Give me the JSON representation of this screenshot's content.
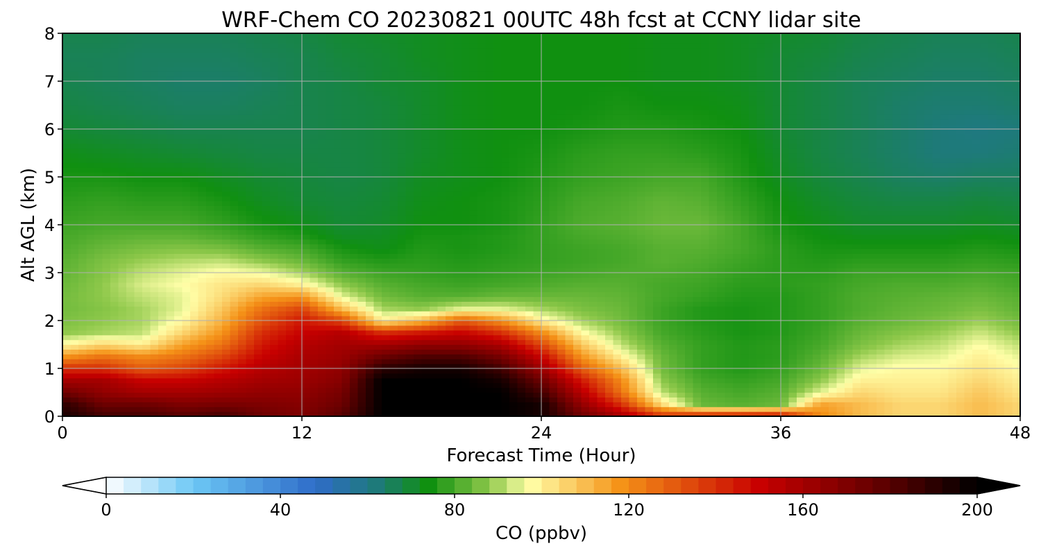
{
  "chart_data": {
    "type": "heatmap",
    "title": "WRF-Chem CO  20230821 00UTC 48h fcst at CCNY lidar site",
    "xlabel": "Forecast Time (Hour)",
    "ylabel": "Alt AGL (km)",
    "xlim": [
      0,
      48
    ],
    "ylim": [
      0,
      8
    ],
    "xticks": [
      0,
      12,
      24,
      36,
      48
    ],
    "yticks": [
      0,
      1,
      2,
      3,
      4,
      5,
      6,
      7,
      8
    ],
    "grid": true,
    "x": [
      0,
      2,
      4,
      6,
      8,
      10,
      12,
      14,
      16,
      18,
      20,
      22,
      24,
      26,
      28,
      30,
      32,
      34,
      36,
      38,
      40,
      42,
      44,
      46,
      48
    ],
    "y": [
      0,
      0.25,
      0.5,
      0.75,
      1,
      1.25,
      1.5,
      1.75,
      2,
      2.25,
      2.5,
      2.75,
      3,
      3.25,
      3.5,
      3.75,
      4,
      4.5,
      5,
      5.5,
      6,
      6.5,
      7,
      7.5,
      8
    ],
    "z_unit": "CO  (ppbv)",
    "z": [
      [
        195,
        185,
        185,
        180,
        185,
        175,
        170,
        180,
        200,
        200,
        200,
        200,
        195,
        175,
        160,
        140,
        145,
        148,
        150,
        120,
        110,
        105,
        105,
        110,
        105
      ],
      [
        190,
        175,
        175,
        170,
        172,
        170,
        168,
        175,
        200,
        200,
        200,
        200,
        195,
        165,
        140,
        105,
        84,
        82,
        84,
        115,
        110,
        105,
        105,
        110,
        105
      ],
      [
        175,
        165,
        160,
        160,
        162,
        165,
        165,
        172,
        200,
        200,
        200,
        200,
        185,
        155,
        125,
        92,
        82,
        80,
        82,
        95,
        105,
        102,
        102,
        108,
        102
      ],
      [
        160,
        160,
        150,
        150,
        155,
        160,
        162,
        168,
        200,
        200,
        200,
        195,
        175,
        145,
        120,
        88,
        80,
        78,
        80,
        88,
        100,
        100,
        100,
        105,
        100
      ],
      [
        140,
        140,
        130,
        135,
        145,
        155,
        160,
        165,
        190,
        195,
        195,
        185,
        162,
        130,
        110,
        85,
        78,
        76,
        78,
        84,
        95,
        98,
        98,
        102,
        98
      ],
      [
        118,
        125,
        120,
        125,
        135,
        150,
        158,
        162,
        175,
        182,
        182,
        172,
        150,
        118,
        100,
        84,
        78,
        76,
        77,
        82,
        90,
        94,
        95,
        100,
        95
      ],
      [
        98,
        105,
        100,
        115,
        125,
        145,
        155,
        160,
        160,
        165,
        165,
        158,
        135,
        108,
        92,
        82,
        78,
        76,
        77,
        80,
        86,
        90,
        92,
        97,
        92
      ],
      [
        88,
        90,
        92,
        105,
        118,
        140,
        150,
        155,
        140,
        145,
        150,
        140,
        120,
        98,
        88,
        80,
        77,
        75,
        76,
        79,
        84,
        87,
        89,
        93,
        88
      ],
      [
        86,
        88,
        90,
        98,
        112,
        132,
        145,
        135,
        100,
        110,
        130,
        118,
        100,
        90,
        85,
        79,
        76,
        75,
        76,
        78,
        82,
        84,
        86,
        89,
        85
      ],
      [
        85,
        87,
        90,
        95,
        108,
        125,
        135,
        110,
        90,
        88,
        95,
        95,
        90,
        86,
        84,
        79,
        76,
        75,
        76,
        78,
        81,
        83,
        84,
        86,
        83
      ],
      [
        85,
        88,
        92,
        95,
        104,
        115,
        118,
        95,
        85,
        82,
        82,
        84,
        84,
        84,
        83,
        80,
        78,
        76,
        76,
        78,
        81,
        82,
        83,
        84,
        82
      ],
      [
        84,
        88,
        94,
        97,
        102,
        105,
        100,
        88,
        82,
        80,
        79,
        80,
        81,
        82,
        82,
        80,
        79,
        77,
        77,
        78,
        80,
        81,
        81,
        82,
        80
      ],
      [
        83,
        87,
        92,
        95,
        98,
        96,
        90,
        82,
        79,
        78,
        77,
        78,
        79,
        80,
        81,
        81,
        80,
        78,
        77,
        77,
        79,
        79,
        79,
        80,
        79
      ],
      [
        82,
        86,
        89,
        91,
        92,
        88,
        84,
        78,
        76,
        77,
        76,
        77,
        78,
        79,
        80,
        82,
        81,
        79,
        77,
        76,
        77,
        77,
        77,
        78,
        77
      ],
      [
        81,
        84,
        86,
        87,
        86,
        82,
        80,
        75,
        73,
        76,
        75,
        76,
        78,
        79,
        80,
        82,
        82,
        80,
        77,
        75,
        75,
        75,
        75,
        76,
        75
      ],
      [
        80,
        82,
        83,
        83,
        81,
        78,
        76,
        72,
        72,
        75,
        75,
        76,
        78,
        80,
        81,
        83,
        83,
        80,
        76,
        74,
        73,
        73,
        73,
        74,
        73
      ],
      [
        79,
        80,
        80,
        80,
        78,
        75,
        73,
        70,
        71,
        74,
        74,
        75,
        78,
        81,
        82,
        84,
        84,
        80,
        75,
        73,
        71,
        71,
        71,
        72,
        71
      ],
      [
        77,
        78,
        77,
        77,
        75,
        72,
        70,
        69,
        70,
        73,
        74,
        75,
        77,
        80,
        81,
        83,
        82,
        78,
        74,
        71,
        69,
        68,
        68,
        69,
        68
      ],
      [
        75,
        75,
        74,
        74,
        72,
        70,
        69,
        68,
        69,
        72,
        73,
        74,
        76,
        78,
        79,
        80,
        80,
        76,
        72,
        69,
        67,
        65,
        64,
        65,
        65
      ],
      [
        73,
        72,
        71,
        70,
        69,
        68,
        68,
        68,
        69,
        71,
        73,
        74,
        75,
        77,
        78,
        78,
        77,
        75,
        71,
        68,
        66,
        64,
        62,
        62,
        63
      ],
      [
        70,
        69,
        68,
        67,
        67,
        67,
        67,
        68,
        69,
        71,
        73,
        74,
        74,
        75,
        76,
        76,
        75,
        74,
        70,
        68,
        66,
        64,
        62,
        61,
        62
      ],
      [
        68,
        67,
        66,
        65,
        65,
        66,
        67,
        68,
        69,
        71,
        73,
        74,
        74,
        74,
        75,
        74,
        74,
        73,
        70,
        68,
        66,
        64,
        63,
        63,
        64
      ],
      [
        67,
        66,
        65,
        64,
        64,
        65,
        67,
        68,
        70,
        71,
        73,
        74,
        74,
        74,
        74,
        73,
        73,
        72,
        70,
        68,
        66,
        65,
        64,
        64,
        65
      ],
      [
        66,
        66,
        65,
        65,
        65,
        66,
        67,
        69,
        70,
        72,
        73,
        74,
        74,
        74,
        74,
        73,
        73,
        72,
        70,
        69,
        67,
        66,
        65,
        65,
        66
      ],
      [
        67,
        67,
        66,
        66,
        66,
        67,
        68,
        70,
        71,
        72,
        73,
        74,
        74,
        74,
        74,
        73,
        73,
        72,
        71,
        70,
        68,
        67,
        66,
        66,
        67
      ]
    ]
  },
  "colorbar": {
    "label": "CO  (ppbv)",
    "min": 0,
    "max": 200,
    "ticks": [
      0,
      40,
      80,
      120,
      160,
      200
    ],
    "extend": "both",
    "stops": [
      {
        "v": 0,
        "c": "#ffffff"
      },
      {
        "v": 20,
        "c": "#6cc7f5"
      },
      {
        "v": 48,
        "c": "#2f6cc9"
      },
      {
        "v": 62,
        "c": "#1e7a7a"
      },
      {
        "v": 74,
        "c": "#109010"
      },
      {
        "v": 88,
        "c": "#8ec84a"
      },
      {
        "v": 97,
        "c": "#ffffa8"
      },
      {
        "v": 118,
        "c": "#f59318"
      },
      {
        "v": 150,
        "c": "#c80000"
      },
      {
        "v": 176,
        "c": "#680000"
      },
      {
        "v": 200,
        "c": "#000000"
      }
    ]
  }
}
